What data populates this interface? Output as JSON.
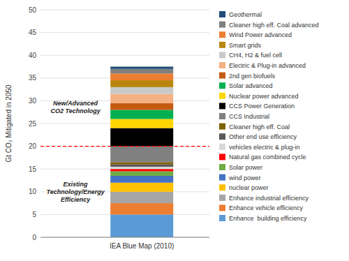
{
  "chart_data": {
    "type": "bar",
    "stacked": true,
    "categories": [
      "IEA Blue Map (2010)"
    ],
    "ylabel": "Gt CO₂ Mitigated in 2050",
    "ylim": [
      0,
      50
    ],
    "yticks": [
      0,
      5,
      10,
      15,
      20,
      25,
      30,
      35,
      40,
      45,
      50
    ],
    "grid": true,
    "legend": "right",
    "series": [
      {
        "name": "Enhance  building efficiency",
        "color": "#5b9bd5",
        "values": [
          5.0
        ]
      },
      {
        "name": "Enhance vehicle efficiency",
        "color": "#ed7d31",
        "values": [
          2.5
        ]
      },
      {
        "name": "Enhance industrial efficiency",
        "color": "#a5a5a5",
        "values": [
          2.5
        ]
      },
      {
        "name": "nuclear power",
        "color": "#ffc000",
        "values": [
          2.0
        ]
      },
      {
        "name": "wind power",
        "color": "#4472c4",
        "values": [
          1.5
        ]
      },
      {
        "name": "Solar power",
        "color": "#70ad47",
        "values": [
          1.0
        ]
      },
      {
        "name": "Natural gas combined cycle",
        "color": "#ff0000",
        "values": [
          0.5
        ]
      },
      {
        "name": "vehicles electric & plug-in",
        "color": "#d9d9d9",
        "values": [
          0.5
        ]
      },
      {
        "name": "Other end use efficiency",
        "color": "#595959",
        "values": [
          0.5
        ]
      },
      {
        "name": "Cleaner high eff. Coal",
        "color": "#7f6000",
        "values": [
          0.5
        ]
      },
      {
        "name": "CCS Industrial",
        "color": "#808080",
        "values": [
          3.5
        ]
      },
      {
        "name": "CCS Power Generation",
        "color": "#000000",
        "values": [
          4.0
        ]
      },
      {
        "name": "Nuclear power advanced",
        "color": "#ffd700",
        "values": [
          2.0
        ]
      },
      {
        "name": "Solar advanced",
        "color": "#00b050",
        "values": [
          2.0
        ]
      },
      {
        "name": "2nd gen biofuels",
        "color": "#c55a11",
        "values": [
          1.5
        ]
      },
      {
        "name": "Electric & Plug-in advanced",
        "color": "#f4b183",
        "values": [
          2.0
        ]
      },
      {
        "name": "CH4, H2 & fuel cell",
        "color": "#c9c9c9",
        "values": [
          1.5
        ]
      },
      {
        "name": "Smart grids",
        "color": "#b8860b",
        "values": [
          1.5
        ]
      },
      {
        "name": "Wind Power advanced",
        "color": "#ed7d31",
        "values": [
          1.5
        ]
      },
      {
        "name": "Cleaner high eff. Coal advanced",
        "color": "#808080",
        "values": [
          1.0
        ]
      },
      {
        "name": "Geothermal",
        "color": "#1f4e79",
        "values": [
          0.5
        ]
      }
    ],
    "reference_lines": [
      {
        "y": 20.0,
        "color": "red",
        "line_style": "dashed"
      }
    ],
    "annotations": [
      {
        "text": "New/Advanced\nCO2 Technology"
      },
      {
        "text": "Existing\nTechnology/Energy\nEfficiency"
      }
    ]
  }
}
